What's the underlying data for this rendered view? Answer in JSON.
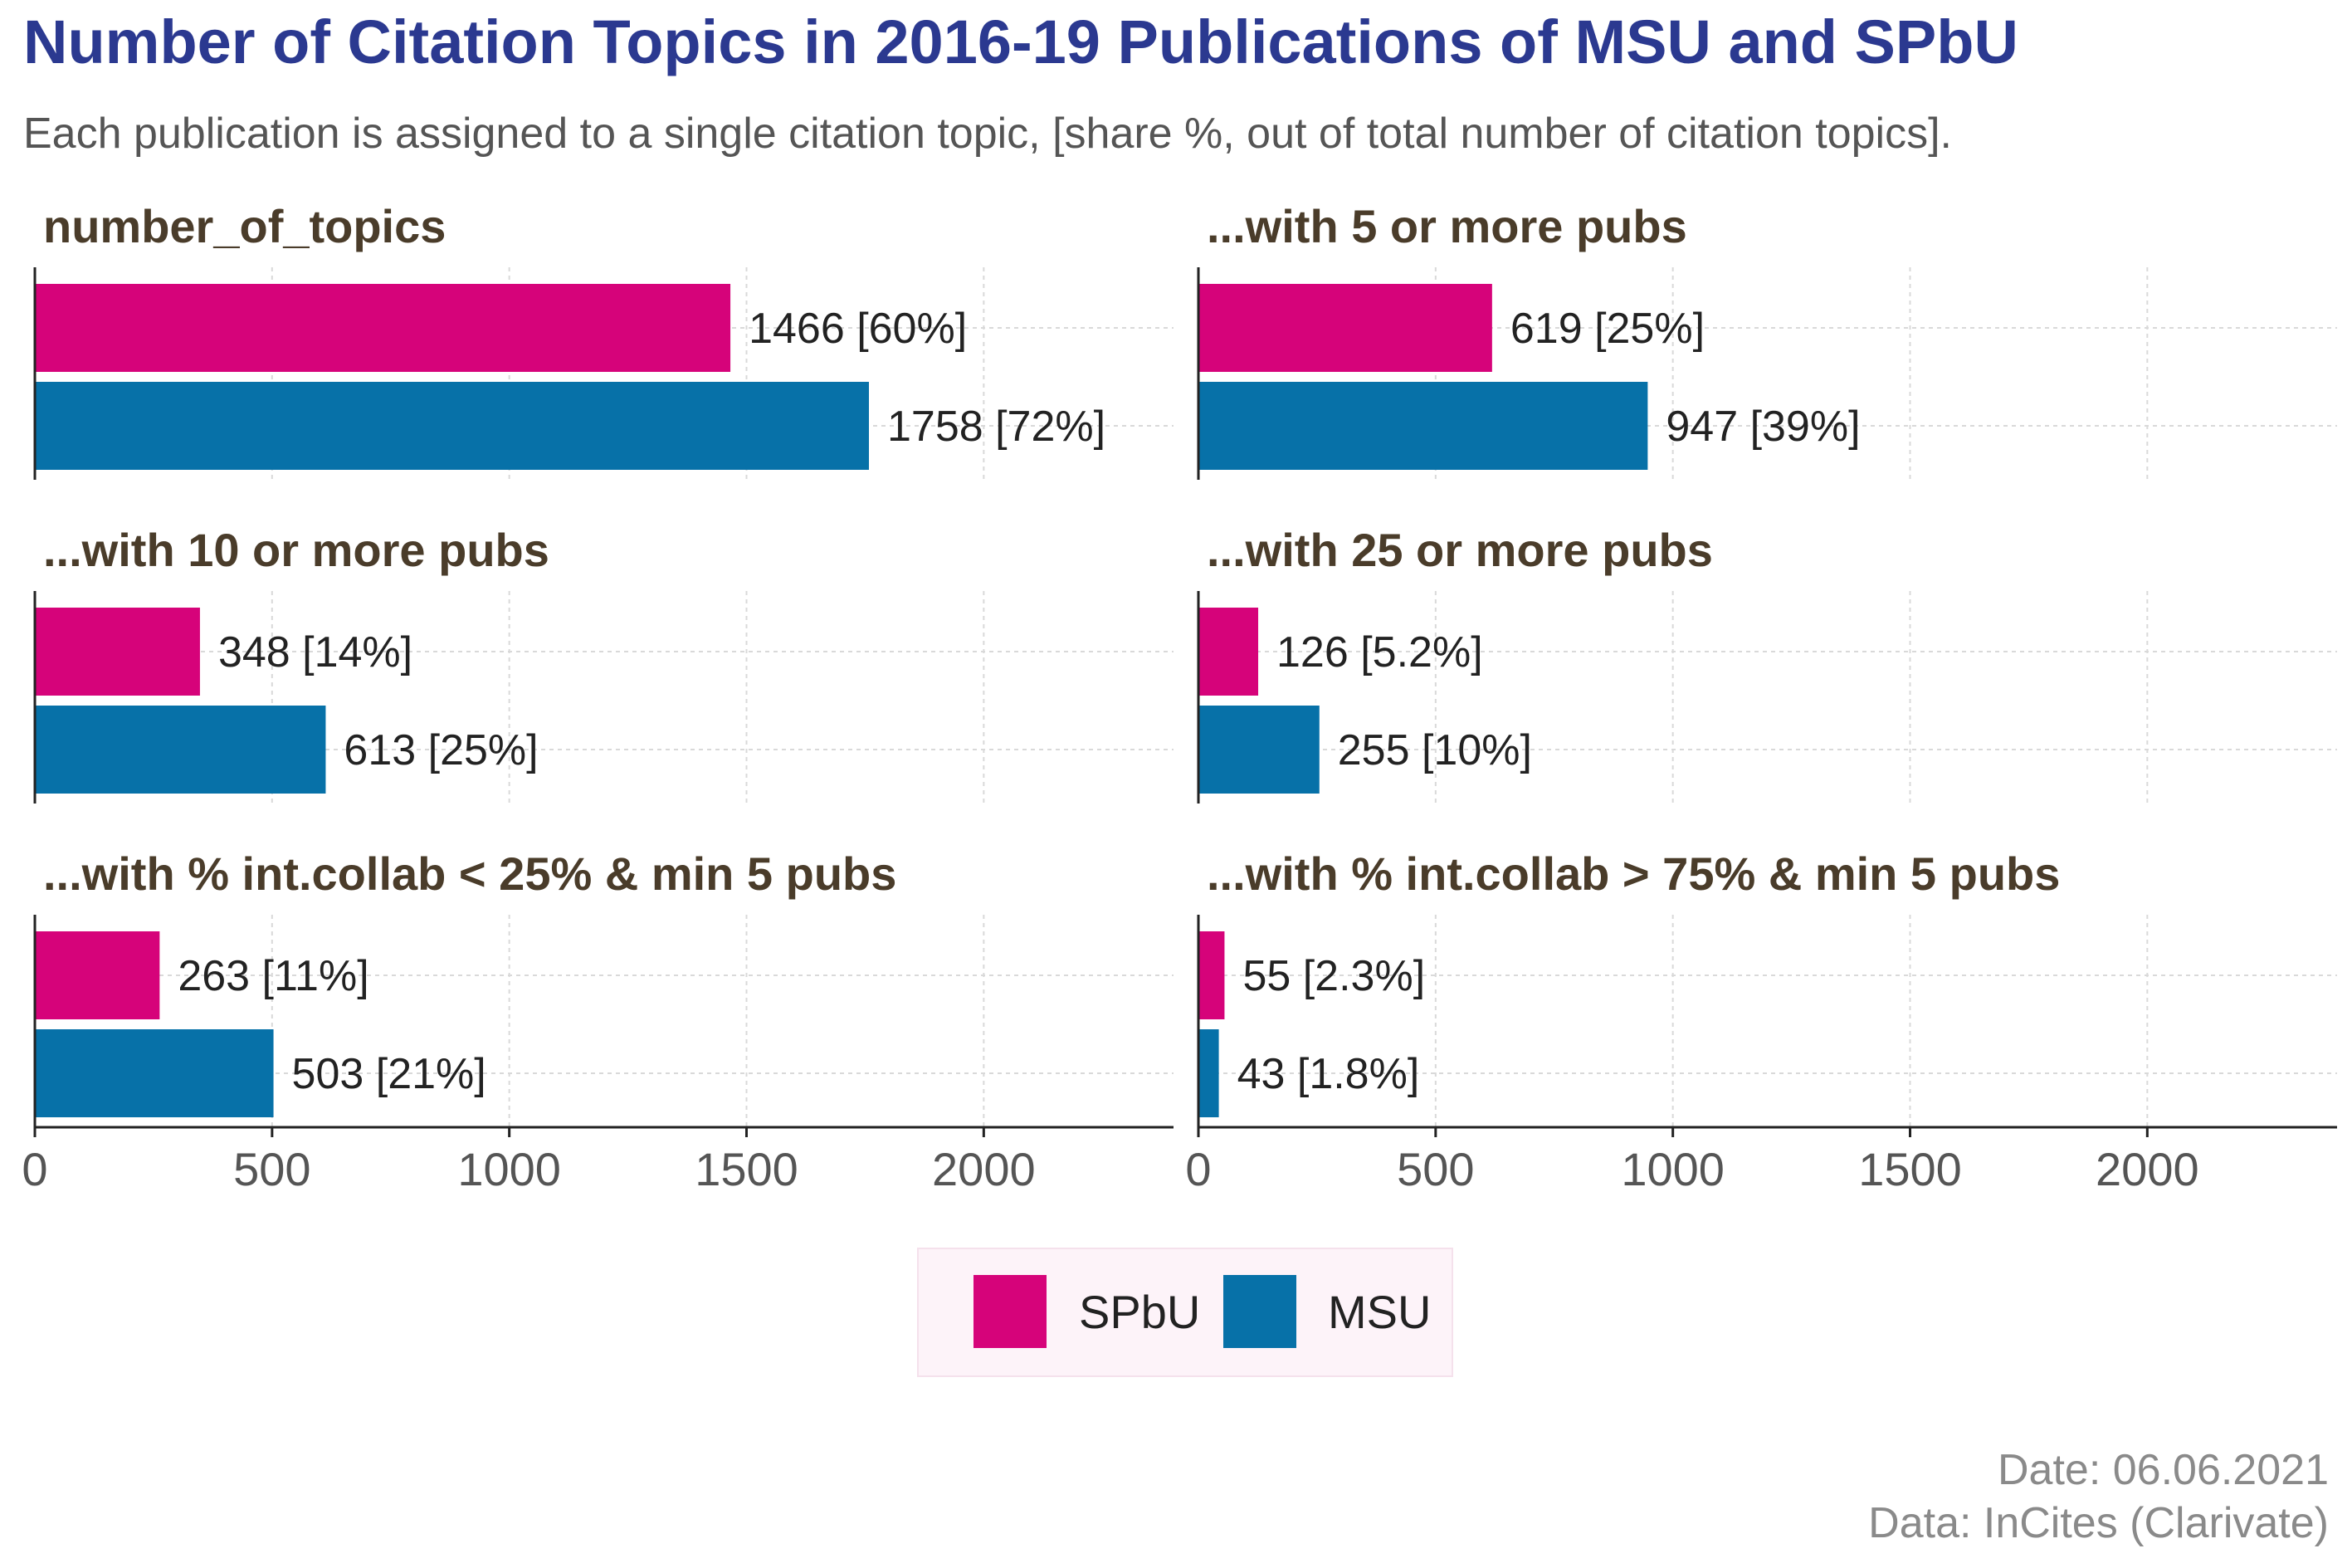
{
  "header": {
    "title": "Number of Citation Topics in 2016-19 Publications of MSU and SPbU",
    "subtitle": "Each publication is assigned to a single citation topic, [share %, out of total number of citation topics]."
  },
  "caption": {
    "date": "Date: 06.06.2021",
    "source": "Data: InCites (Clarivate)"
  },
  "colors": {
    "title": "#2b3990",
    "subtitle": "#555555",
    "facet_title": "#4a3c2a",
    "spbu": "#d6037a",
    "msu": "#0771a8",
    "grid": "#d9d9d9",
    "axis": "#222222",
    "tick_text": "#555555",
    "caption": "#8a8a8a",
    "legend_bg": "#fdf3f9",
    "legend_border": "#f5e1ec"
  },
  "chart_data": {
    "type": "bar",
    "orientation": "horizontal",
    "x_ticks": [
      0,
      500,
      1000,
      1500,
      2000
    ],
    "xlim": [
      0,
      2400
    ],
    "grid": true,
    "legend": {
      "position": "bottom",
      "entries": [
        {
          "key": "spbu",
          "label": "SPbU"
        },
        {
          "key": "msu",
          "label": "MSU"
        }
      ]
    },
    "facets": [
      {
        "title": "number_of_topics",
        "bars": [
          {
            "series": "spbu",
            "value": 1466,
            "label": "1466 [60%]"
          },
          {
            "series": "msu",
            "value": 1758,
            "label": "1758 [72%]"
          }
        ]
      },
      {
        "title": "...with 5 or more pubs",
        "bars": [
          {
            "series": "spbu",
            "value": 619,
            "label": "619 [25%]"
          },
          {
            "series": "msu",
            "value": 947,
            "label": "947 [39%]"
          }
        ]
      },
      {
        "title": "...with 10 or more pubs",
        "bars": [
          {
            "series": "spbu",
            "value": 348,
            "label": "348 [14%]"
          },
          {
            "series": "msu",
            "value": 613,
            "label": "613 [25%]"
          }
        ]
      },
      {
        "title": "...with 25 or more pubs",
        "bars": [
          {
            "series": "spbu",
            "value": 126,
            "label": "126 [5.2%]"
          },
          {
            "series": "msu",
            "value": 255,
            "label": "255 [10%]"
          }
        ]
      },
      {
        "title": "...with % int.collab < 25% & min 5 pubs",
        "bars": [
          {
            "series": "spbu",
            "value": 263,
            "label": "263 [11%]"
          },
          {
            "series": "msu",
            "value": 503,
            "label": "503 [21%]"
          }
        ]
      },
      {
        "title": "...with % int.collab > 75% & min 5 pubs",
        "bars": [
          {
            "series": "spbu",
            "value": 55,
            "label": "55 [2.3%]"
          },
          {
            "series": "msu",
            "value": 43,
            "label": "43 [1.8%]"
          }
        ]
      }
    ]
  }
}
